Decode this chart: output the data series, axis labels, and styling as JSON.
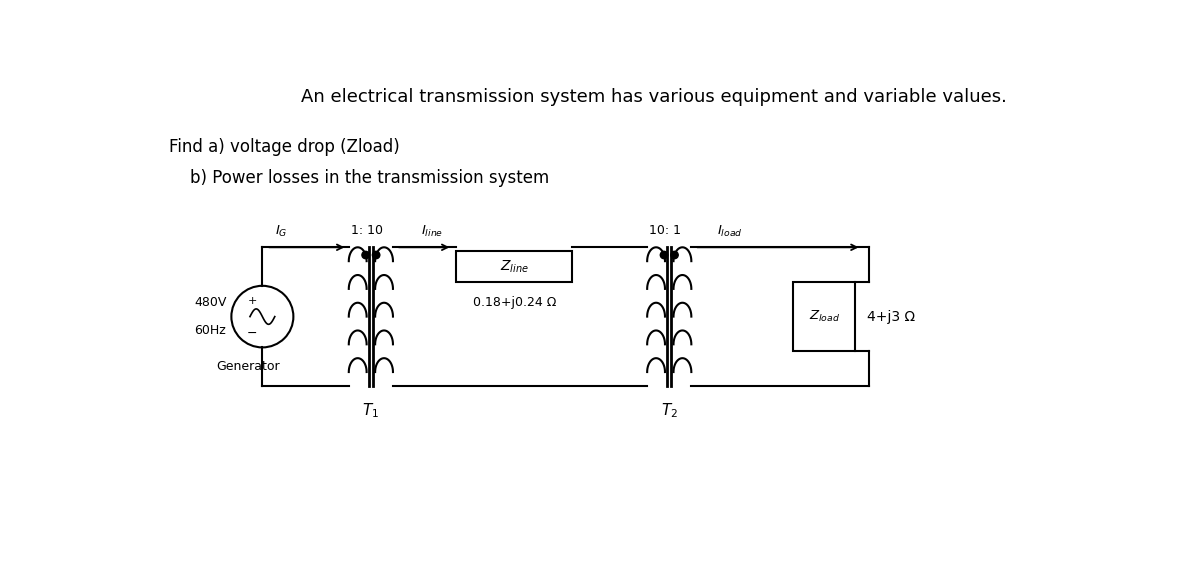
{
  "title": "An electrical transmission system has various equipment and variable values.",
  "find_text_a": "Find a) voltage drop (Zload)",
  "find_text_b": "    b) Power losses in the transmission system",
  "voltage": "480V",
  "freq": "60Hz",
  "gen_label": "Generator",
  "t1_ratio": "1: 10",
  "t2_ratio": "10: 1",
  "zline_value": "0.18+j0.24 Ω",
  "zload_value": "4+j3 Ω",
  "t1_label": "T₁",
  "t2_label": "T₂",
  "bg_color": "#ffffff",
  "line_color": "#000000",
  "font_size_title": 13,
  "font_size_find": 12,
  "font_size_circuit": 9
}
